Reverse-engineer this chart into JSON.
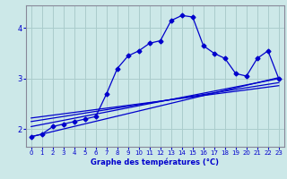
{
  "xlabel": "Graphe des températures (°C)",
  "bg_color": "#cce8e8",
  "line_color": "#0000cc",
  "grid_color": "#aacccc",
  "xlim": [
    -0.5,
    23.5
  ],
  "ylim": [
    1.65,
    4.45
  ],
  "yticks": [
    2,
    3,
    4
  ],
  "xticks": [
    0,
    1,
    2,
    3,
    4,
    5,
    6,
    7,
    8,
    9,
    10,
    11,
    12,
    13,
    14,
    15,
    16,
    17,
    18,
    19,
    20,
    21,
    22,
    23
  ],
  "main_x": [
    0,
    1,
    2,
    3,
    4,
    5,
    6,
    7,
    8,
    9,
    10,
    11,
    12,
    13,
    14,
    15,
    16,
    17,
    18,
    19,
    20,
    21,
    22,
    23
  ],
  "main_y": [
    1.85,
    1.9,
    2.05,
    2.1,
    2.15,
    2.2,
    2.25,
    2.7,
    3.2,
    3.45,
    3.55,
    3.7,
    3.75,
    4.15,
    4.25,
    4.22,
    3.65,
    3.5,
    3.4,
    3.1,
    3.05,
    3.4,
    3.55,
    3.0
  ],
  "reg_lines": [
    [
      [
        0,
        23
      ],
      [
        1.85,
        3.02
      ]
    ],
    [
      [
        0,
        23
      ],
      [
        2.05,
        3.0
      ]
    ],
    [
      [
        0,
        23
      ],
      [
        2.15,
        2.92
      ]
    ],
    [
      [
        0,
        23
      ],
      [
        2.22,
        2.86
      ]
    ]
  ],
  "xlabel_fontsize": 6.0,
  "tick_fontsize": 5.0,
  "ytick_fontsize": 6.0
}
